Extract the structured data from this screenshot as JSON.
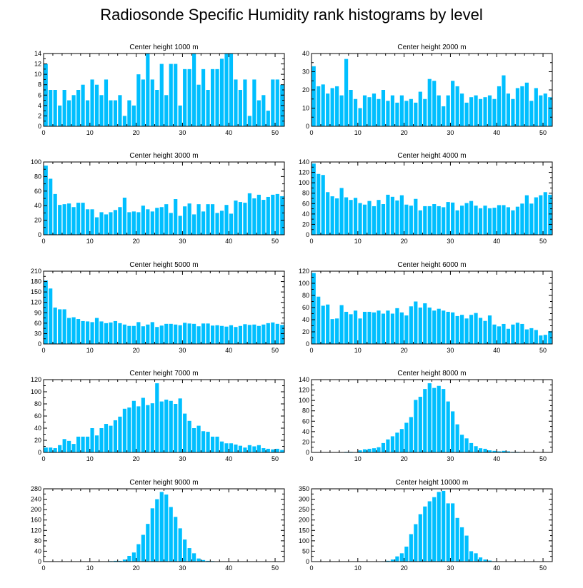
{
  "title": "Radiosonde Specific Humidity rank histograms by level",
  "colors": {
    "bar": "#00BFFF",
    "axis": "#000000"
  },
  "chart_data": [
    {
      "type": "bar",
      "title": "Center height 1000 m",
      "x": [
        0,
        1,
        2,
        3,
        4,
        5,
        6,
        7,
        8,
        9,
        10,
        11,
        12,
        13,
        14,
        15,
        16,
        17,
        18,
        19,
        20,
        21,
        22,
        23,
        24,
        25,
        26,
        27,
        28,
        29,
        30,
        31,
        32,
        33,
        34,
        35,
        36,
        37,
        38,
        39,
        40,
        41,
        42,
        43,
        44,
        45,
        46,
        47,
        48,
        49,
        50,
        51
      ],
      "values": [
        12,
        7,
        7,
        4,
        7,
        5,
        6,
        7,
        8,
        5,
        9,
        8,
        6,
        9,
        5,
        5,
        6,
        2,
        5,
        4,
        10,
        9,
        14,
        9,
        7,
        12,
        6,
        12,
        12,
        4,
        11,
        11,
        14,
        8,
        11,
        7,
        11,
        11,
        13,
        14,
        14,
        9,
        7,
        9,
        2,
        9,
        5,
        6,
        3,
        9,
        9,
        8
      ],
      "xlim": [
        0,
        52
      ],
      "ylim": [
        0,
        14
      ],
      "xticks": [
        0,
        10,
        20,
        30,
        40,
        50
      ],
      "yticks": [
        0,
        2,
        4,
        6,
        8,
        10,
        12,
        14
      ]
    },
    {
      "type": "bar",
      "title": "Center height 2000 m",
      "x": [
        0,
        1,
        2,
        3,
        4,
        5,
        6,
        7,
        8,
        9,
        10,
        11,
        12,
        13,
        14,
        15,
        16,
        17,
        18,
        19,
        20,
        21,
        22,
        23,
        24,
        25,
        26,
        27,
        28,
        29,
        30,
        31,
        32,
        33,
        34,
        35,
        36,
        37,
        38,
        39,
        40,
        41,
        42,
        43,
        44,
        45,
        46,
        47,
        48,
        49,
        50,
        51
      ],
      "values": [
        33,
        22,
        23,
        18,
        21,
        22,
        17,
        37,
        20,
        15,
        10,
        17,
        16,
        18,
        15,
        20,
        14,
        17,
        13,
        17,
        14,
        15,
        13,
        19,
        15,
        26,
        25,
        17,
        11,
        17,
        25,
        22,
        18,
        13,
        16,
        17,
        15,
        16,
        17,
        15,
        22,
        28,
        18,
        15,
        21,
        22,
        24,
        14,
        21,
        17,
        18,
        16
      ],
      "xlim": [
        0,
        52
      ],
      "ylim": [
        0,
        40
      ],
      "xticks": [
        0,
        10,
        20,
        30,
        40,
        50
      ],
      "yticks": [
        0,
        10,
        20,
        30,
        40
      ]
    },
    {
      "type": "bar",
      "title": "Center height 3000 m",
      "x": [
        0,
        1,
        2,
        3,
        4,
        5,
        6,
        7,
        8,
        9,
        10,
        11,
        12,
        13,
        14,
        15,
        16,
        17,
        18,
        19,
        20,
        21,
        22,
        23,
        24,
        25,
        26,
        27,
        28,
        29,
        30,
        31,
        32,
        33,
        34,
        35,
        36,
        37,
        38,
        39,
        40,
        41,
        42,
        43,
        44,
        45,
        46,
        47,
        48,
        49,
        50,
        51
      ],
      "values": [
        95,
        77,
        56,
        41,
        42,
        43,
        38,
        44,
        44,
        35,
        35,
        24,
        31,
        28,
        31,
        34,
        38,
        51,
        31,
        32,
        31,
        40,
        35,
        32,
        37,
        38,
        42,
        30,
        49,
        26,
        39,
        43,
        28,
        42,
        32,
        42,
        42,
        30,
        33,
        41,
        29,
        47,
        45,
        44,
        57,
        50,
        55,
        48,
        52,
        55,
        56,
        53
      ],
      "xlim": [
        0,
        52
      ],
      "ylim": [
        0,
        100
      ],
      "xticks": [
        0,
        10,
        20,
        30,
        40,
        50
      ],
      "yticks": [
        0,
        20,
        40,
        60,
        80,
        100
      ]
    },
    {
      "type": "bar",
      "title": "Center height 4000 m",
      "x": [
        0,
        1,
        2,
        3,
        4,
        5,
        6,
        7,
        8,
        9,
        10,
        11,
        12,
        13,
        14,
        15,
        16,
        17,
        18,
        19,
        20,
        21,
        22,
        23,
        24,
        25,
        26,
        27,
        28,
        29,
        30,
        31,
        32,
        33,
        34,
        35,
        36,
        37,
        38,
        39,
        40,
        41,
        42,
        43,
        44,
        45,
        46,
        47,
        48,
        49,
        50,
        51
      ],
      "values": [
        137,
        117,
        115,
        82,
        74,
        70,
        90,
        72,
        67,
        71,
        61,
        58,
        65,
        55,
        67,
        59,
        77,
        73,
        66,
        76,
        58,
        56,
        69,
        47,
        55,
        55,
        59,
        55,
        53,
        63,
        62,
        47,
        56,
        61,
        65,
        56,
        51,
        56,
        51,
        52,
        57,
        57,
        53,
        47,
        54,
        60,
        76,
        60,
        72,
        76,
        82,
        77
      ],
      "xlim": [
        0,
        52
      ],
      "ylim": [
        0,
        140
      ],
      "xticks": [
        0,
        10,
        20,
        30,
        40,
        50
      ],
      "yticks": [
        0,
        20,
        40,
        60,
        80,
        100,
        120,
        140
      ]
    },
    {
      "type": "bar",
      "title": "Center height 5000 m",
      "x": [
        0,
        1,
        2,
        3,
        4,
        5,
        6,
        7,
        8,
        9,
        10,
        11,
        12,
        13,
        14,
        15,
        16,
        17,
        18,
        19,
        20,
        21,
        22,
        23,
        24,
        25,
        26,
        27,
        28,
        29,
        30,
        31,
        32,
        33,
        34,
        35,
        36,
        37,
        38,
        39,
        40,
        41,
        42,
        43,
        44,
        45,
        46,
        47,
        48,
        49,
        50,
        51
      ],
      "values": [
        183,
        160,
        105,
        100,
        100,
        75,
        77,
        72,
        66,
        65,
        63,
        75,
        65,
        60,
        62,
        66,
        60,
        56,
        52,
        52,
        63,
        51,
        56,
        63,
        49,
        53,
        58,
        58,
        56,
        54,
        61,
        59,
        58,
        51,
        59,
        59,
        53,
        54,
        52,
        50,
        54,
        49,
        52,
        57,
        55,
        56,
        52,
        56,
        60,
        62,
        58,
        55
      ],
      "xlim": [
        0,
        52
      ],
      "ylim": [
        0,
        210
      ],
      "xticks": [
        0,
        10,
        20,
        30,
        40,
        50
      ],
      "yticks": [
        0,
        30,
        60,
        90,
        120,
        150,
        180,
        210
      ]
    },
    {
      "type": "bar",
      "title": "Center height 6000 m",
      "x": [
        0,
        1,
        2,
        3,
        4,
        5,
        6,
        7,
        8,
        9,
        10,
        11,
        12,
        13,
        14,
        15,
        16,
        17,
        18,
        19,
        20,
        21,
        22,
        23,
        24,
        25,
        26,
        27,
        28,
        29,
        30,
        31,
        32,
        33,
        34,
        35,
        36,
        37,
        38,
        39,
        40,
        41,
        42,
        43,
        44,
        45,
        46,
        47,
        48,
        49,
        50,
        51
      ],
      "values": [
        117,
        78,
        63,
        65,
        41,
        42,
        64,
        53,
        49,
        55,
        42,
        53,
        53,
        52,
        55,
        50,
        55,
        50,
        59,
        52,
        47,
        62,
        70,
        60,
        67,
        60,
        55,
        58,
        55,
        53,
        52,
        46,
        48,
        42,
        48,
        51,
        43,
        38,
        47,
        32,
        29,
        33,
        25,
        32,
        35,
        33,
        24,
        26,
        23,
        14,
        15,
        21
      ],
      "xlim": [
        0,
        52
      ],
      "ylim": [
        0,
        120
      ],
      "xticks": [
        0,
        10,
        20,
        30,
        40,
        50
      ],
      "yticks": [
        0,
        20,
        40,
        60,
        80,
        100,
        120
      ]
    },
    {
      "type": "bar",
      "title": "Center height 7000 m",
      "x": [
        0,
        1,
        2,
        3,
        4,
        5,
        6,
        7,
        8,
        9,
        10,
        11,
        12,
        13,
        14,
        15,
        16,
        17,
        18,
        19,
        20,
        21,
        22,
        23,
        24,
        25,
        26,
        27,
        28,
        29,
        30,
        31,
        32,
        33,
        34,
        35,
        36,
        37,
        38,
        39,
        40,
        41,
        42,
        43,
        44,
        45,
        46,
        47,
        48,
        49,
        50,
        51
      ],
      "values": [
        8,
        8,
        7,
        12,
        22,
        19,
        14,
        26,
        26,
        26,
        40,
        28,
        40,
        47,
        44,
        53,
        59,
        72,
        74,
        85,
        76,
        90,
        78,
        81,
        114,
        84,
        87,
        85,
        80,
        89,
        64,
        52,
        40,
        44,
        35,
        34,
        26,
        26,
        18,
        15,
        15,
        13,
        11,
        8,
        12,
        10,
        12,
        7,
        6,
        5,
        6,
        4
      ],
      "xlim": [
        0,
        52
      ],
      "ylim": [
        0,
        120
      ],
      "xticks": [
        0,
        10,
        20,
        30,
        40,
        50
      ],
      "yticks": [
        0,
        20,
        40,
        60,
        80,
        100,
        120
      ]
    },
    {
      "type": "bar",
      "title": "Center height 8000 m",
      "x": [
        0,
        1,
        2,
        3,
        4,
        5,
        6,
        7,
        8,
        9,
        10,
        11,
        12,
        13,
        14,
        15,
        16,
        17,
        18,
        19,
        20,
        21,
        22,
        23,
        24,
        25,
        26,
        27,
        28,
        29,
        30,
        31,
        32,
        33,
        34,
        35,
        36,
        37,
        38,
        39,
        40,
        41,
        42,
        43,
        44,
        45,
        46,
        47,
        48,
        49,
        50,
        51
      ],
      "values": [
        0,
        0,
        0,
        0,
        0,
        0,
        0,
        1,
        1,
        0,
        4,
        6,
        7,
        8,
        10,
        18,
        25,
        31,
        38,
        45,
        57,
        68,
        101,
        107,
        122,
        133,
        124,
        128,
        122,
        98,
        79,
        54,
        34,
        27,
        18,
        12,
        8,
        7,
        4,
        3,
        2,
        3,
        2,
        1,
        1,
        0,
        0,
        0,
        0,
        0,
        0,
        0
      ],
      "xlim": [
        0,
        52
      ],
      "ylim": [
        0,
        140
      ],
      "xticks": [
        0,
        10,
        20,
        30,
        40,
        50
      ],
      "yticks": [
        0,
        20,
        40,
        60,
        80,
        100,
        120,
        140
      ]
    },
    {
      "type": "bar",
      "title": "Center height 9000 m",
      "x": [
        0,
        1,
        2,
        3,
        4,
        5,
        6,
        7,
        8,
        9,
        10,
        11,
        12,
        13,
        14,
        15,
        16,
        17,
        18,
        19,
        20,
        21,
        22,
        23,
        24,
        25,
        26,
        27,
        28,
        29,
        30,
        31,
        32,
        33,
        34,
        35,
        36,
        37,
        38,
        39,
        40,
        41,
        42,
        43,
        44,
        45,
        46,
        47,
        48,
        49,
        50,
        51
      ],
      "values": [
        0,
        0,
        0,
        0,
        0,
        0,
        0,
        0,
        0,
        0,
        0,
        0,
        0,
        0,
        2,
        3,
        3,
        8,
        22,
        35,
        67,
        103,
        145,
        205,
        240,
        268,
        258,
        210,
        172,
        128,
        85,
        52,
        32,
        12,
        6,
        3,
        2,
        1,
        0,
        1,
        0,
        0,
        0,
        0,
        0,
        0,
        0,
        0,
        0,
        0,
        0,
        0
      ],
      "xlim": [
        0,
        52
      ],
      "ylim": [
        0,
        280
      ],
      "xticks": [
        0,
        10,
        20,
        30,
        40,
        50
      ],
      "yticks": [
        0,
        40,
        80,
        120,
        160,
        200,
        240,
        280
      ]
    },
    {
      "type": "bar",
      "title": "Center height 10000 m",
      "x": [
        0,
        1,
        2,
        3,
        4,
        5,
        6,
        7,
        8,
        9,
        10,
        11,
        12,
        13,
        14,
        15,
        16,
        17,
        18,
        19,
        20,
        21,
        22,
        23,
        24,
        25,
        26,
        27,
        28,
        29,
        30,
        31,
        32,
        33,
        34,
        35,
        36,
        37,
        38,
        39,
        40,
        41,
        42,
        43,
        44,
        45,
        46,
        47,
        48,
        49,
        50,
        51
      ],
      "values": [
        0,
        0,
        0,
        0,
        0,
        0,
        0,
        0,
        0,
        0,
        0,
        0,
        0,
        0,
        0,
        2,
        4,
        10,
        25,
        40,
        72,
        132,
        180,
        228,
        265,
        290,
        310,
        335,
        340,
        280,
        280,
        210,
        165,
        125,
        50,
        40,
        20,
        10,
        5,
        2,
        1,
        0,
        0,
        0,
        0,
        0,
        0,
        0,
        0,
        0,
        0,
        0
      ],
      "xlim": [
        0,
        52
      ],
      "ylim": [
        0,
        350
      ],
      "xticks": [
        0,
        10,
        20,
        30,
        40,
        50
      ],
      "yticks": [
        0,
        50,
        100,
        150,
        200,
        250,
        300,
        350
      ]
    }
  ]
}
